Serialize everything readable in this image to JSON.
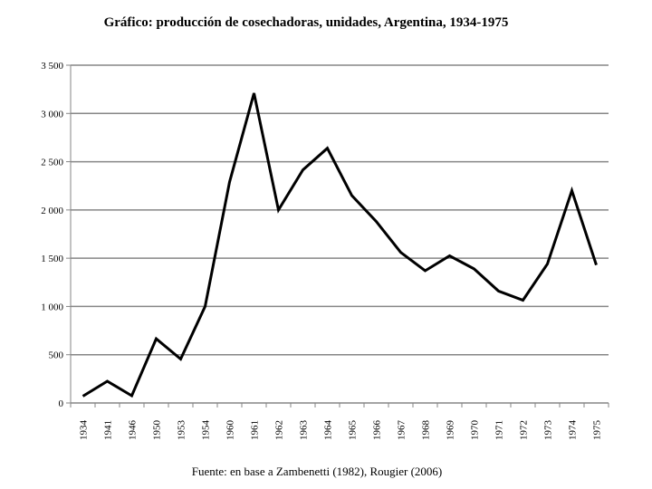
{
  "chart_data": {
    "type": "line",
    "title": "Gráfico: producción de cosechadoras, unidades, Argentina, 1934-1975",
    "source_note": "Fuente: en base a Zambenetti (1982), Rougier (2006)",
    "xlabel": "",
    "ylabel": "",
    "categories": [
      "1934",
      "1941",
      "1946",
      "1950",
      "1953",
      "1954",
      "1960",
      "1961",
      "1962",
      "1963",
      "1964",
      "1965",
      "1966",
      "1967",
      "1968",
      "1969",
      "1970",
      "1971",
      "1972",
      "1973",
      "1974",
      "1975"
    ],
    "series": [
      {
        "values": [
          70,
          225,
          75,
          665,
          455,
          1000,
          2290,
          3210,
          2000,
          2415,
          2640,
          2150,
          1880,
          1560,
          1370,
          1525,
          1390,
          1160,
          1065,
          1440,
          2200,
          1430
        ],
        "color": "#000000"
      }
    ],
    "ylim": [
      0,
      3500
    ],
    "yticks": [
      0,
      500,
      1000,
      1500,
      2000,
      2500,
      3000,
      3500
    ],
    "ytick_labels": [
      "0",
      "500",
      "1 000",
      "1 500",
      "2 000",
      "2 500",
      "3 000",
      "3 500"
    ],
    "grid": "horizontal",
    "legend": "none"
  }
}
